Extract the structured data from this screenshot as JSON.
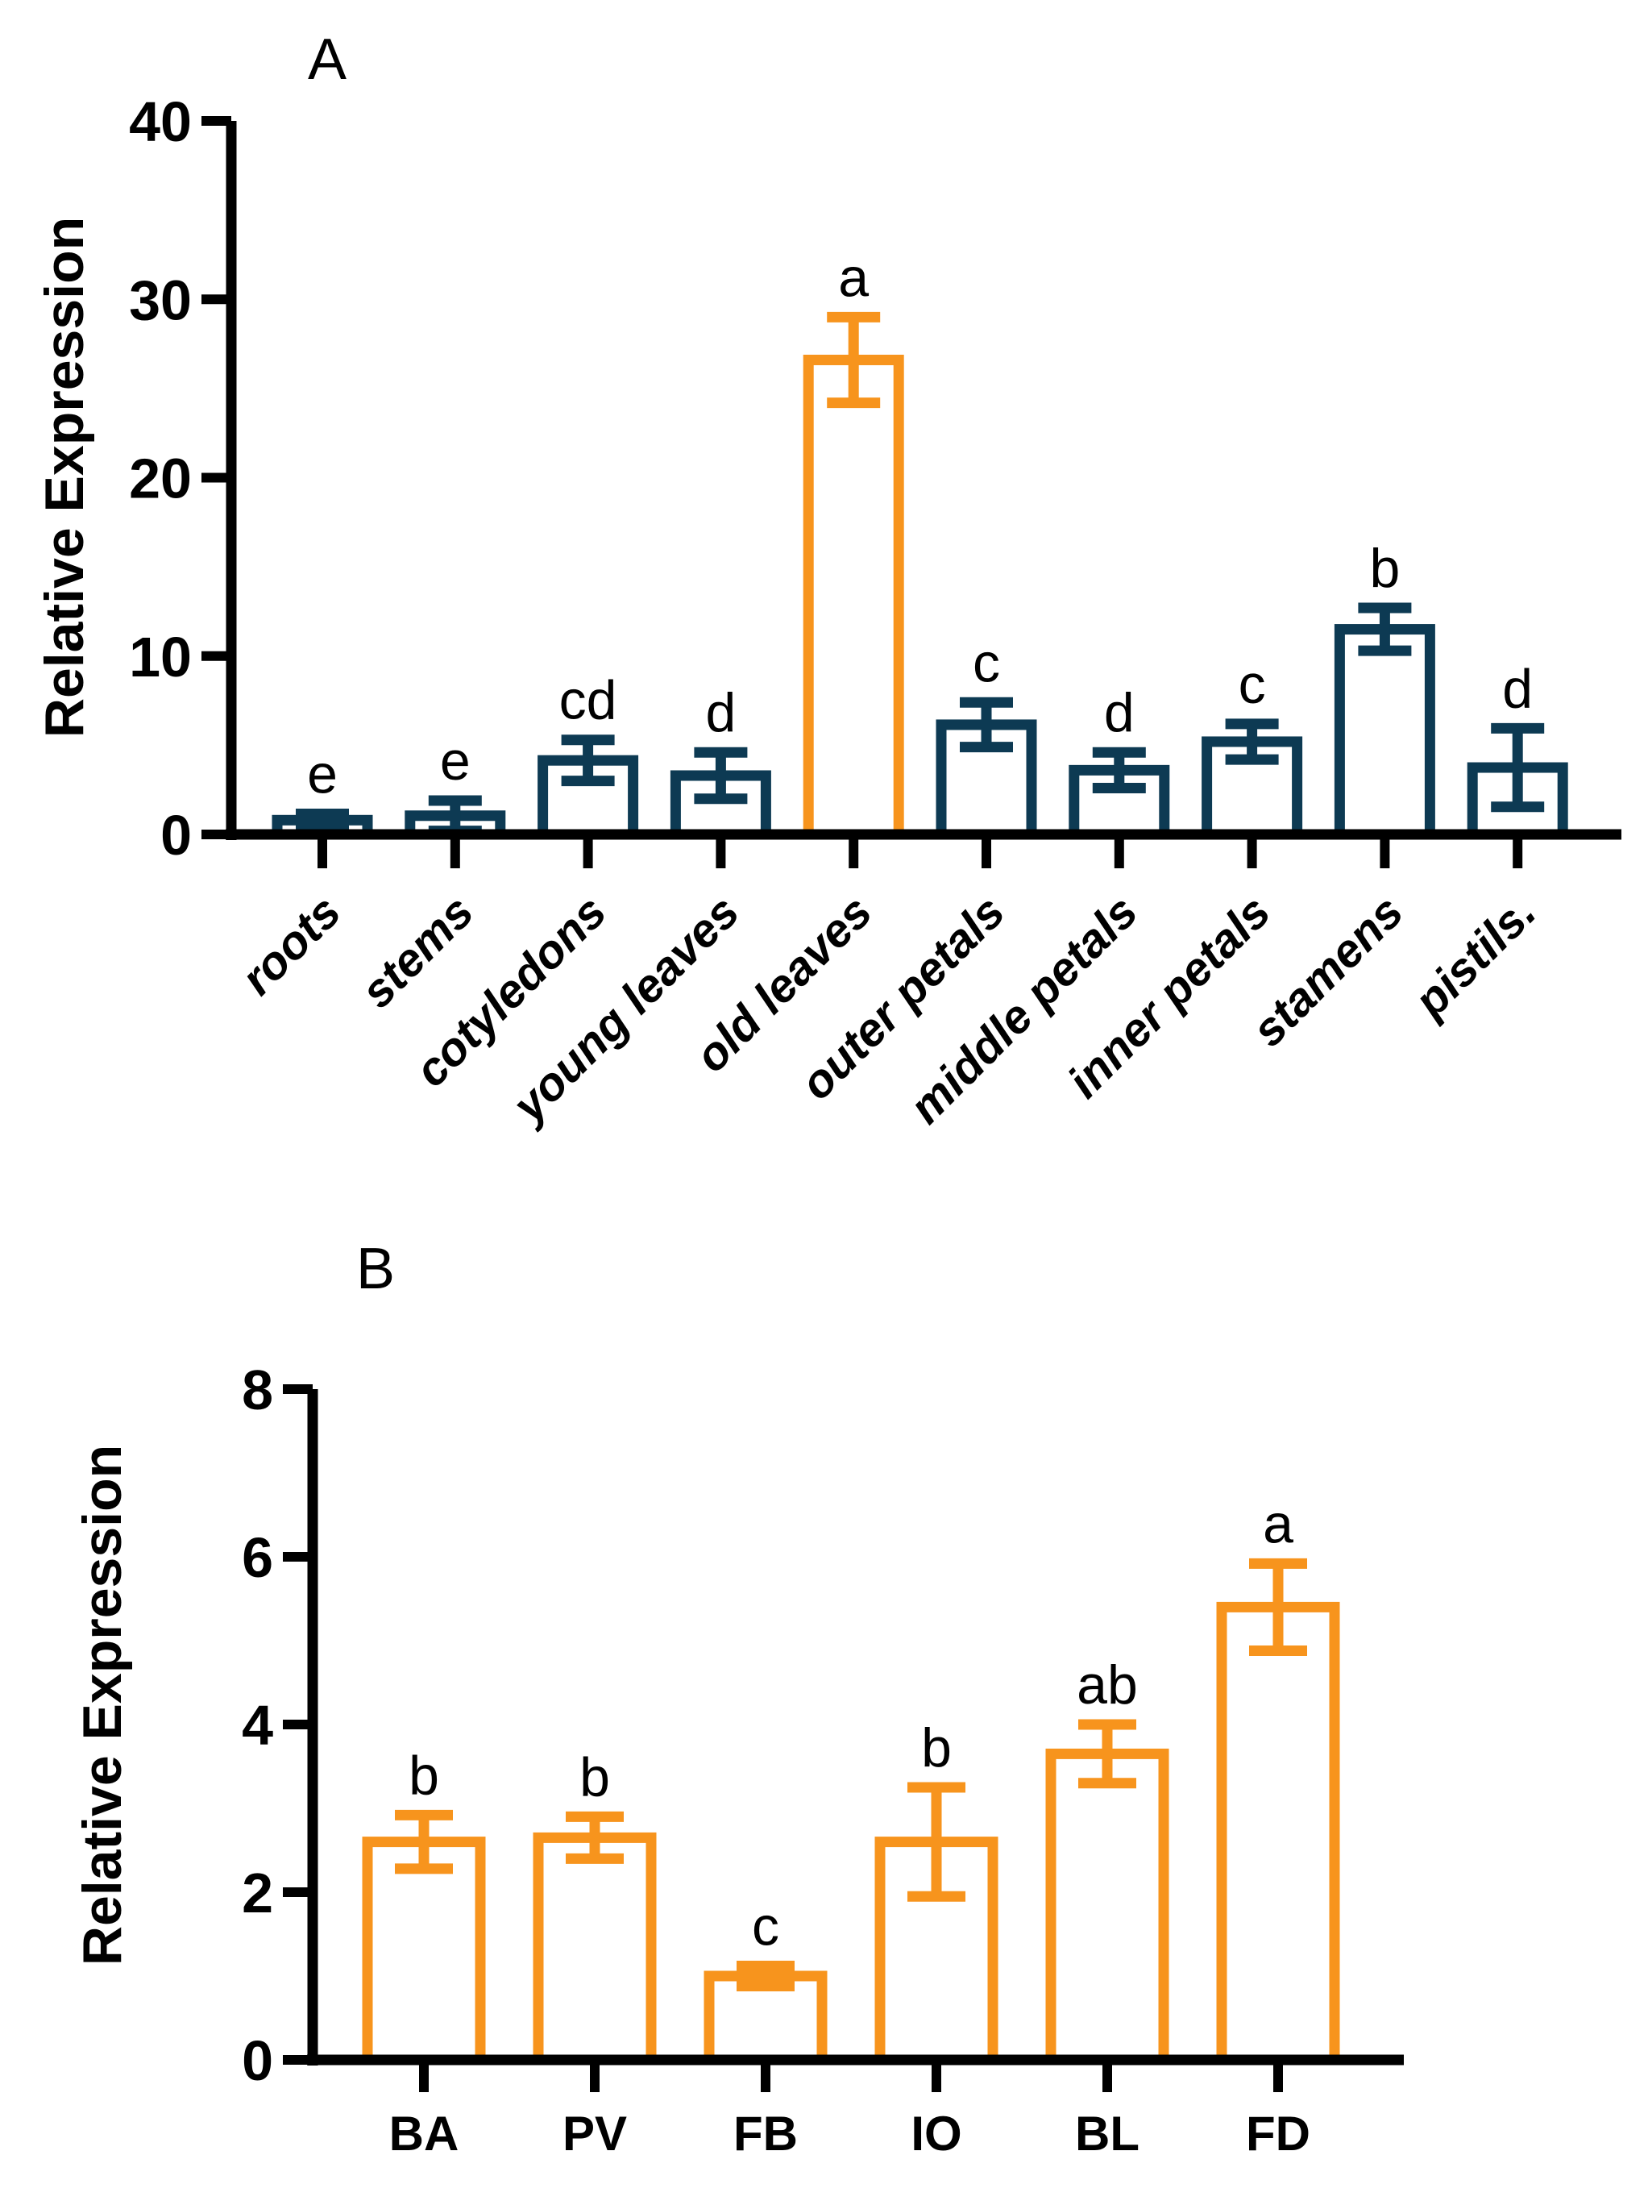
{
  "page": {
    "background": "#FFFFFF",
    "figure_type": "two-panel bar chart with error bars and significance letters"
  },
  "colors": {
    "navy": "#0D3A53",
    "orange": "#F7941D",
    "axis_black": "#000000",
    "bar_fill_white": "#FFFFFF"
  },
  "chart_data": [
    {
      "type": "bar",
      "panel_label": "A",
      "title": "",
      "ylabel": "Relative Expression",
      "xlabel": "",
      "ylim": [
        0,
        40
      ],
      "yticks": [
        0,
        10,
        20,
        30,
        40
      ],
      "grid": false,
      "legend": "none",
      "bar_style": "outlined",
      "bar_fill": "#FFFFFF",
      "x_label_rotation": -45,
      "categories": [
        "roots",
        "stems",
        "cotyledons",
        "young leaves",
        "old leaves",
        "outer petals",
        "middle petals",
        "inner petals",
        "stamens",
        "pistils."
      ],
      "values": [
        0.8,
        1.05,
        4.15,
        3.3,
        26.6,
        6.15,
        3.6,
        5.2,
        11.5,
        3.75
      ],
      "errors": [
        0.35,
        0.85,
        1.15,
        1.3,
        2.4,
        1.25,
        1.0,
        1.0,
        1.2,
        2.2
      ],
      "sig_letters": [
        "e",
        "e",
        "cd",
        "d",
        "a",
        "c",
        "d",
        "c",
        "b",
        "d"
      ],
      "bar_colors": [
        "navy",
        "navy",
        "navy",
        "navy",
        "orange",
        "navy",
        "navy",
        "navy",
        "navy",
        "navy"
      ]
    },
    {
      "type": "bar",
      "panel_label": "B",
      "title": "",
      "ylabel": "Relative Expression",
      "xlabel": "",
      "ylim": [
        0,
        8
      ],
      "yticks": [
        0,
        2,
        4,
        6,
        8
      ],
      "grid": false,
      "legend": "none",
      "bar_style": "outlined",
      "bar_fill": "#FFFFFF",
      "x_label_rotation": 0,
      "categories": [
        "BA",
        "PV",
        "FB",
        "IO",
        "BL",
        "FD"
      ],
      "values": [
        2.6,
        2.65,
        1.0,
        2.6,
        3.65,
        5.4
      ],
      "errors": [
        0.32,
        0.25,
        0.12,
        0.65,
        0.35,
        0.52
      ],
      "sig_letters": [
        "b",
        "b",
        "c",
        "b",
        "ab",
        "a"
      ],
      "bar_colors": [
        "orange",
        "orange",
        "orange",
        "orange",
        "orange",
        "orange"
      ]
    }
  ]
}
